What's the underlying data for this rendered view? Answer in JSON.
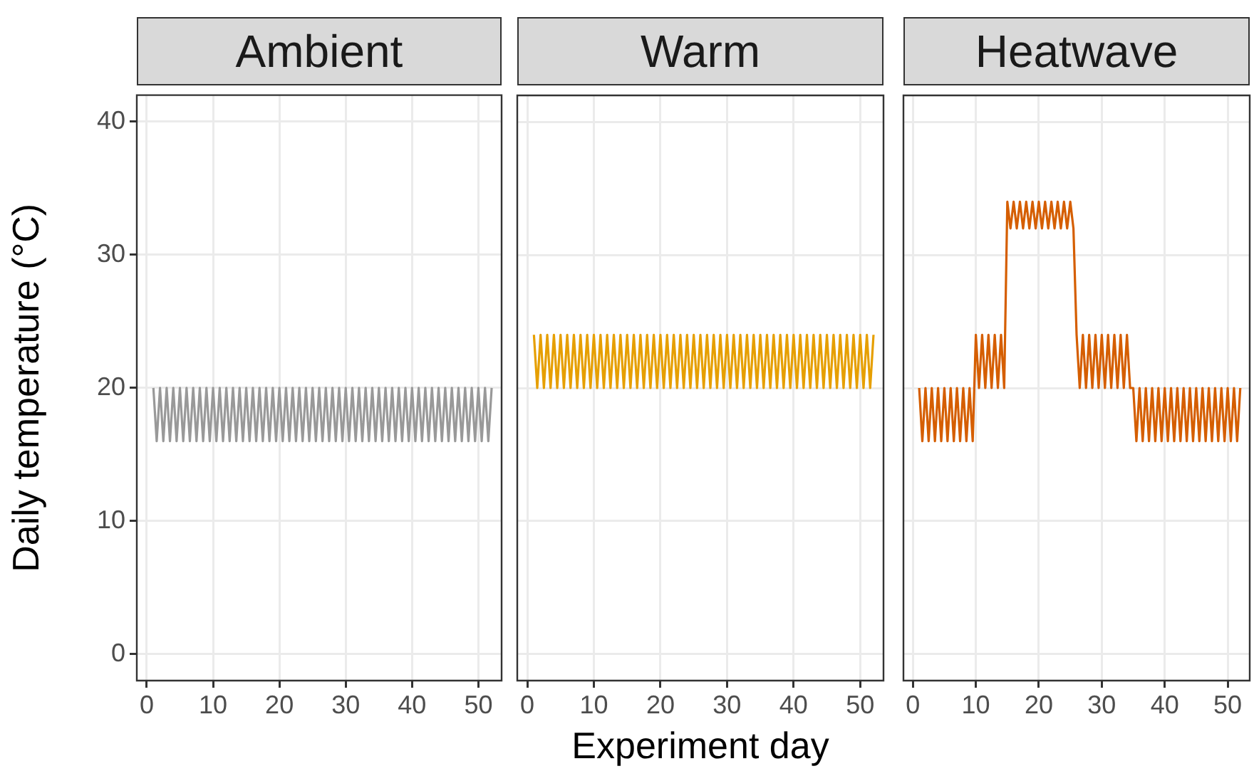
{
  "chart_data": [
    {
      "type": "line",
      "title": "Ambient",
      "ylabel": "Daily temperature (°C)",
      "tick_labels": "xy",
      "grid": true,
      "marker": "none",
      "xlim": [
        -1.5,
        53.5
      ],
      "ylim": [
        -2,
        42
      ],
      "xticks": [
        0,
        10,
        20,
        30,
        40,
        50
      ],
      "yticks": [
        0,
        10,
        20,
        30,
        40
      ],
      "x": [
        1,
        1.5,
        2,
        2.5,
        3,
        3.5,
        4,
        4.5,
        5,
        5.5,
        6,
        6.5,
        7,
        7.5,
        8,
        8.5,
        9,
        9.5,
        10,
        10.5,
        11,
        11.5,
        12,
        12.5,
        13,
        13.5,
        14,
        14.5,
        15,
        15.5,
        16,
        16.5,
        17,
        17.5,
        18,
        18.5,
        19,
        19.5,
        20,
        20.5,
        21,
        21.5,
        22,
        22.5,
        23,
        23.5,
        24,
        24.5,
        25,
        25.5,
        26,
        26.5,
        27,
        27.5,
        28,
        28.5,
        29,
        29.5,
        30,
        30.5,
        31,
        31.5,
        32,
        32.5,
        33,
        33.5,
        34,
        34.5,
        35,
        35.5,
        36,
        36.5,
        37,
        37.5,
        38,
        38.5,
        39,
        39.5,
        40,
        40.5,
        41,
        41.5,
        42,
        42.5,
        43,
        43.5,
        44,
        44.5,
        45,
        45.5,
        46,
        46.5,
        47,
        47.5,
        48,
        48.5,
        49,
        49.5,
        50,
        50.5,
        51,
        51.5,
        52
      ],
      "series": [
        {
          "color": "#999999",
          "values": [
            20,
            16,
            20,
            16,
            20,
            16,
            20,
            16,
            20,
            16,
            20,
            16,
            20,
            16,
            20,
            16,
            20,
            16,
            20,
            16,
            20,
            16,
            20,
            16,
            20,
            16,
            20,
            16,
            20,
            16,
            20,
            16,
            20,
            16,
            20,
            16,
            20,
            16,
            20,
            16,
            20,
            16,
            20,
            16,
            20,
            16,
            20,
            16,
            20,
            16,
            20,
            16,
            20,
            16,
            20,
            16,
            20,
            16,
            20,
            16,
            20,
            16,
            20,
            16,
            20,
            16,
            20,
            16,
            20,
            16,
            20,
            16,
            20,
            16,
            20,
            16,
            20,
            16,
            20,
            16,
            20,
            16,
            20,
            16,
            20,
            16,
            20,
            16,
            20,
            16,
            20,
            16,
            20,
            16,
            20,
            16,
            20,
            16,
            20,
            16,
            20,
            16,
            20
          ]
        }
      ]
    },
    {
      "type": "line",
      "title": "Warm",
      "xlabel": "Experiment day",
      "tick_labels": "x",
      "grid": true,
      "marker": "none",
      "xlim": [
        -1.5,
        53.5
      ],
      "ylim": [
        -2,
        42
      ],
      "xticks": [
        0,
        10,
        20,
        30,
        40,
        50
      ],
      "yticks": [
        0,
        10,
        20,
        30,
        40
      ],
      "x": [
        1,
        1.5,
        2,
        2.5,
        3,
        3.5,
        4,
        4.5,
        5,
        5.5,
        6,
        6.5,
        7,
        7.5,
        8,
        8.5,
        9,
        9.5,
        10,
        10.5,
        11,
        11.5,
        12,
        12.5,
        13,
        13.5,
        14,
        14.5,
        15,
        15.5,
        16,
        16.5,
        17,
        17.5,
        18,
        18.5,
        19,
        19.5,
        20,
        20.5,
        21,
        21.5,
        22,
        22.5,
        23,
        23.5,
        24,
        24.5,
        25,
        25.5,
        26,
        26.5,
        27,
        27.5,
        28,
        28.5,
        29,
        29.5,
        30,
        30.5,
        31,
        31.5,
        32,
        32.5,
        33,
        33.5,
        34,
        34.5,
        35,
        35.5,
        36,
        36.5,
        37,
        37.5,
        38,
        38.5,
        39,
        39.5,
        40,
        40.5,
        41,
        41.5,
        42,
        42.5,
        43,
        43.5,
        44,
        44.5,
        45,
        45.5,
        46,
        46.5,
        47,
        47.5,
        48,
        48.5,
        49,
        49.5,
        50,
        50.5,
        51,
        51.5,
        52
      ],
      "series": [
        {
          "color": "#e69f00",
          "values": [
            24,
            20,
            24,
            20,
            24,
            20,
            24,
            20,
            24,
            20,
            24,
            20,
            24,
            20,
            24,
            20,
            24,
            20,
            24,
            20,
            24,
            20,
            24,
            20,
            24,
            20,
            24,
            20,
            24,
            20,
            24,
            20,
            24,
            20,
            24,
            20,
            24,
            20,
            24,
            20,
            24,
            20,
            24,
            20,
            24,
            20,
            24,
            20,
            24,
            20,
            24,
            20,
            24,
            20,
            24,
            20,
            24,
            20,
            24,
            20,
            24,
            20,
            24,
            20,
            24,
            20,
            24,
            20,
            24,
            20,
            24,
            20,
            24,
            20,
            24,
            20,
            24,
            20,
            24,
            20,
            24,
            20,
            24,
            20,
            24,
            20,
            24,
            20,
            24,
            20,
            24,
            20,
            24,
            20,
            24,
            20,
            24,
            20,
            24,
            20,
            24,
            20,
            24
          ]
        }
      ]
    },
    {
      "type": "line",
      "title": "Heatwave",
      "tick_labels": "x",
      "grid": true,
      "marker": "none",
      "xlim": [
        -1.5,
        53.5
      ],
      "ylim": [
        -2,
        42
      ],
      "xticks": [
        0,
        10,
        20,
        30,
        40,
        50
      ],
      "yticks": [
        0,
        10,
        20,
        30,
        40
      ],
      "x": [
        1,
        1.5,
        2,
        2.5,
        3,
        3.5,
        4,
        4.5,
        5,
        5.5,
        6,
        6.5,
        7,
        7.5,
        8,
        8.5,
        9,
        9.5,
        10,
        10.5,
        11,
        11.5,
        12,
        12.5,
        13,
        13.5,
        14,
        14.5,
        15,
        15.5,
        16,
        16.5,
        17,
        17.5,
        18,
        18.5,
        19,
        19.5,
        20,
        20.5,
        21,
        21.5,
        22,
        22.5,
        23,
        23.5,
        24,
        24.5,
        25,
        25.5,
        26,
        26.5,
        27,
        27.5,
        28,
        28.5,
        29,
        29.5,
        30,
        30.5,
        31,
        31.5,
        32,
        32.5,
        33,
        33.5,
        34,
        34.5,
        35,
        35.5,
        36,
        36.5,
        37,
        37.5,
        38,
        38.5,
        39,
        39.5,
        40,
        40.5,
        41,
        41.5,
        42,
        42.5,
        43,
        43.5,
        44,
        44.5,
        45,
        45.5,
        46,
        46.5,
        47,
        47.5,
        48,
        48.5,
        49,
        49.5,
        50,
        50.5,
        51,
        51.5,
        52
      ],
      "series": [
        {
          "color": "#d55e00",
          "values": [
            20,
            16,
            20,
            16,
            20,
            16,
            20,
            16,
            20,
            16,
            20,
            16,
            20,
            16,
            20,
            16,
            20,
            16,
            24,
            20,
            24,
            20,
            24,
            20,
            24,
            20,
            24,
            20,
            34,
            32,
            34,
            32,
            34,
            32,
            34,
            32,
            34,
            32,
            34,
            32,
            34,
            32,
            34,
            32,
            34,
            32,
            34,
            32,
            34,
            32,
            24,
            20,
            24,
            20,
            24,
            20,
            24,
            20,
            24,
            20,
            24,
            20,
            24,
            20,
            24,
            20,
            24,
            20,
            20,
            16,
            20,
            16,
            20,
            16,
            20,
            16,
            20,
            16,
            20,
            16,
            20,
            16,
            20,
            16,
            20,
            16,
            20,
            16,
            20,
            16,
            20,
            16,
            20,
            16,
            20,
            16,
            20,
            16,
            20,
            16,
            20,
            16,
            20
          ]
        }
      ]
    }
  ]
}
